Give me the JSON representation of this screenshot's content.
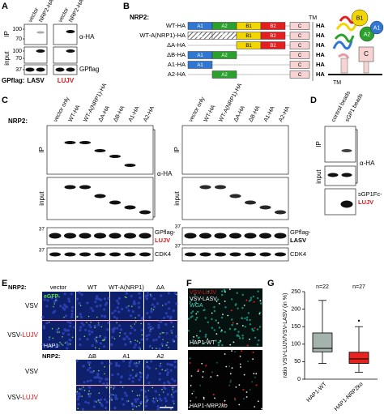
{
  "panel_a": {
    "label": "A",
    "lanes": [
      "vector",
      "NRP2-HA",
      "vector",
      "NRP2-HA"
    ],
    "rows": [
      "IP",
      "input"
    ],
    "markers": [
      100,
      70,
      100,
      70,
      37
    ],
    "antibodies": [
      "α-HA",
      "GPflag"
    ],
    "gpflag_label": "GPflag:",
    "gp": [
      "LASV",
      "LUJV"
    ]
  },
  "panel_b": {
    "label": "B",
    "nrp2_label": "NRP2:",
    "tm_label": "TM",
    "tag": "HA",
    "constructs": [
      {
        "name": "WT-HA",
        "domains": [
          "A1",
          "A2",
          "B1",
          "B2",
          "C"
        ]
      },
      {
        "name": "WT-A(NRP1)-HA",
        "domains": [
          "A1",
          "A2",
          "B1",
          "B2",
          "C"
        ]
      },
      {
        "name": "ΔA-HA",
        "domains": [
          "B1",
          "B2",
          "C"
        ]
      },
      {
        "name": "ΔB-HA",
        "domains": [
          "A1",
          "A2",
          "C"
        ]
      },
      {
        "name": "A1-HA",
        "domains": [
          "A1",
          "C"
        ]
      },
      {
        "name": "A2-HA",
        "domains": [
          "A2",
          "C"
        ]
      }
    ],
    "structure": {
      "domains": [
        "B1",
        "A2",
        "A1",
        "C"
      ],
      "tm_label": "TM"
    }
  },
  "panel_c": {
    "label": "C",
    "nrp2_label": "NRP2:",
    "lanes": [
      "vector only",
      "WT-HA",
      "WT-A(NRP1)-HA",
      "ΔA-HA",
      "ΔB-HA",
      "A1-HA",
      "A2-HA"
    ],
    "rows": [
      "IP",
      "input"
    ],
    "antibody": "α-HA",
    "left_gp": [
      "GPflag-",
      "LUJV"
    ],
    "right_gp": [
      "GPflag-",
      "LASV"
    ],
    "loading": "CDK4",
    "markers": [
      37,
      37,
      37,
      37
    ]
  },
  "panel_d": {
    "label": "D",
    "lanes": [
      "control beads",
      "sGP1 beads"
    ],
    "rows": [
      "IP",
      "input"
    ],
    "antibody": "α-HA",
    "probe": [
      "sGP1Fc-",
      "LUJV"
    ]
  },
  "panel_e": {
    "label": "E",
    "nrp2_label": "NRP2:",
    "columns_top": [
      "vector",
      "WT",
      "WT-A(NRP1)",
      "ΔA"
    ],
    "columns_bottom": [
      "ΔB",
      "A1",
      "A2"
    ],
    "rows": [
      [
        "VSV"
      ],
      [
        "VSV-",
        "LUJV"
      ]
    ],
    "channel": "eGFP",
    "cell_line": "HAP1"
  },
  "panel_f": {
    "label": "F",
    "channels": [
      [
        "VSV-",
        "LUJV"
      ],
      [
        "VSV-LASV"
      ],
      [
        "WGA"
      ]
    ],
    "cells": [
      [
        "HAP1-WT"
      ],
      [
        "HAP1-",
        "NRP2ko"
      ]
    ]
  },
  "panel_g": {
    "label": "G",
    "y_label": "ratio VSV-LUJV/VSV-LASV (in %)",
    "ylim": [
      0,
      250
    ],
    "yticks": [
      0,
      50,
      100,
      150,
      200,
      250
    ],
    "categories": [
      "HAP1-WT",
      "HAP1-NRP2ko"
    ],
    "n_labels": [
      "n=22",
      "n=27"
    ],
    "boxes": [
      {
        "color": "#a4b3ab",
        "whisker_low": 45,
        "q1": 78,
        "median": 88,
        "q3": 132,
        "whisker_high": 225
      },
      {
        "color": "#e8231f",
        "whisker_low": 20,
        "q1": 45,
        "median": 58,
        "q3": 77,
        "whisker_high": 150,
        "outliers": [
          167
        ]
      }
    ]
  }
}
